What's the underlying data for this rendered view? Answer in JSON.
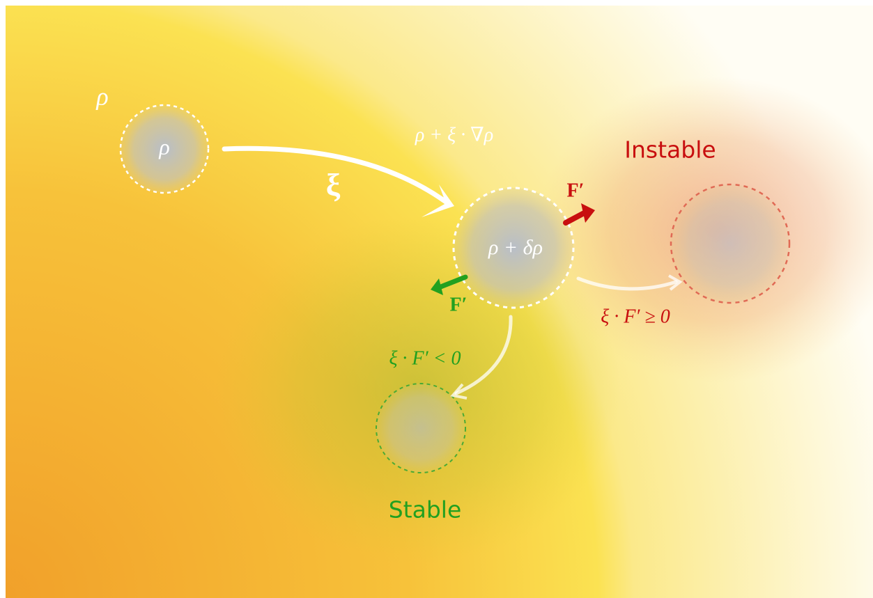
{
  "labels": {
    "rho_outer": "ρ",
    "rho_inner": "ρ",
    "xi": "ξ",
    "displaced_expected": "ρ + ξ · ∇ρ",
    "displaced_actual": "ρ + δρ",
    "force_unstable": "F′",
    "force_stable": "F′",
    "instable_title": "Instable",
    "instable_condition": "ξ · F′ ≥ 0",
    "stable_condition": "ξ · F′ < 0",
    "stable_title": "Stable"
  }
}
